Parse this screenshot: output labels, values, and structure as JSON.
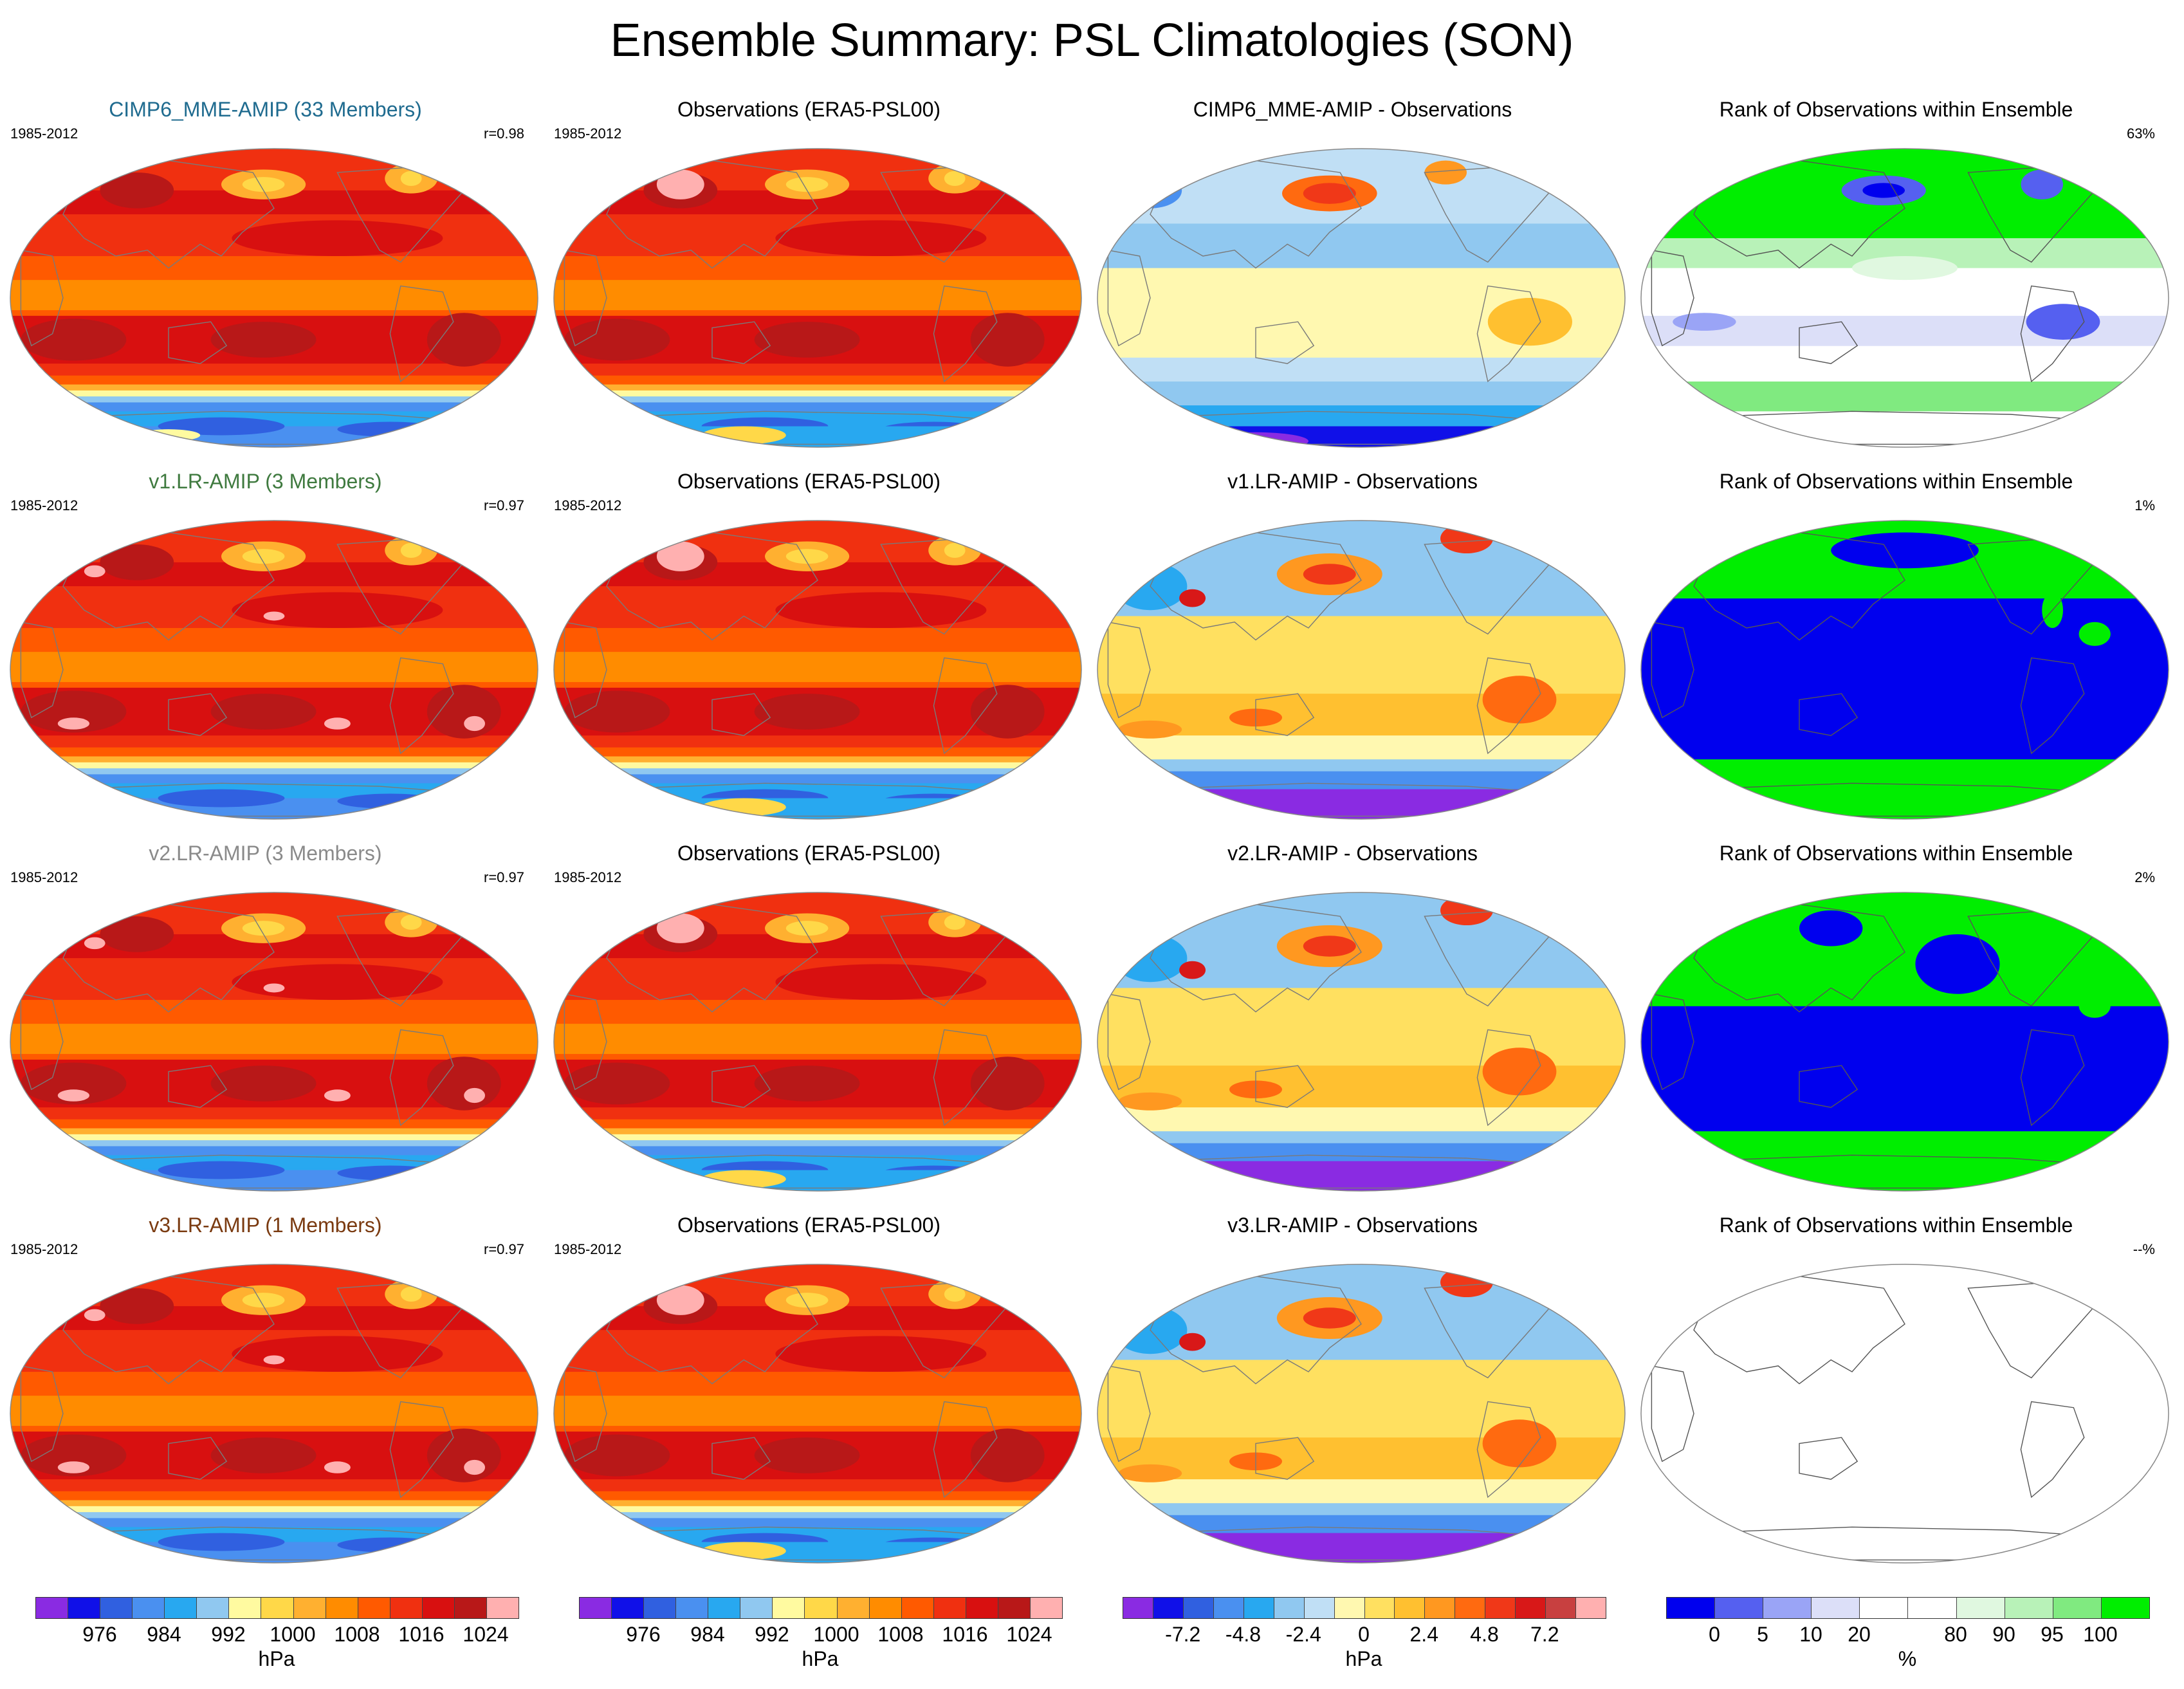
{
  "title": "Ensemble Summary: PSL Climatologies (SON)",
  "period": "1985-2012",
  "rows": [
    {
      "model_title": "CIMP6_MME-AMIP (33 Members)",
      "model_title_color": "#1f6b8f",
      "corr": "r=0.98",
      "obs_title": "Observations (ERA5-PSL00)",
      "diff_title": "CIMP6_MME-AMIP - Observations",
      "rank_title": "Rank of Observations within Ensemble",
      "rank_pct": "63%",
      "rank_style": "mixed"
    },
    {
      "model_title": "v1.LR-AMIP (3 Members)",
      "model_title_color": "#3f7a3f",
      "corr": "r=0.97",
      "obs_title": "Observations (ERA5-PSL00)",
      "diff_title": "v1.LR-AMIP - Observations",
      "rank_title": "Rank of Observations within Ensemble",
      "rank_pct": "1%",
      "rank_style": "binary"
    },
    {
      "model_title": "v2.LR-AMIP (3 Members)",
      "model_title_color": "#8a8a8a",
      "corr": "r=0.97",
      "obs_title": "Observations (ERA5-PSL00)",
      "diff_title": "v2.LR-AMIP - Observations",
      "rank_title": "Rank of Observations within Ensemble",
      "rank_pct": "2%",
      "rank_style": "binary"
    },
    {
      "model_title": "v3.LR-AMIP (1 Members)",
      "model_title_color": "#7a3a10",
      "corr": "r=0.97",
      "obs_title": "Observations (ERA5-PSL00)",
      "diff_title": "v3.LR-AMIP - Observations",
      "rank_title": "Rank of Observations within Ensemble",
      "rank_pct": "--%",
      "rank_style": "empty"
    }
  ],
  "colorbars": {
    "psl": {
      "colors": [
        "#8a2be2",
        "#1010e8",
        "#3060e0",
        "#4a90f0",
        "#28a8f0",
        "#90c8f0",
        "#fffaa0",
        "#ffd848",
        "#ffb030",
        "#ff8c00",
        "#ff5a00",
        "#f03010",
        "#d81010",
        "#b81818",
        "#ffb0b0"
      ],
      "ticks": [
        "976",
        "984",
        "992",
        "1000",
        "1008",
        "1016",
        "1024"
      ],
      "unit": "hPa"
    },
    "diff": {
      "colors": [
        "#8a2be2",
        "#1010e8",
        "#3060e0",
        "#4a90f0",
        "#28a8f0",
        "#90c8f0",
        "#c0dff5",
        "#fff8b0",
        "#ffe060",
        "#ffc030",
        "#ff9820",
        "#ff6a10",
        "#f03818",
        "#d81818",
        "#c84040",
        "#ffb0b0"
      ],
      "ticks": [
        "-7.2",
        "-4.8",
        "-2.4",
        "0",
        "2.4",
        "4.8",
        "7.2"
      ],
      "unit": "hPa"
    },
    "rank": {
      "colors": [
        "#0000ee",
        "#5560f0",
        "#9aa4f6",
        "#dcdff8",
        "#ffffff",
        "#ffffff",
        "#e0f8e0",
        "#b8f2b8",
        "#80ea80",
        "#00ee00"
      ],
      "ticks": [
        "0",
        "5",
        "10",
        "20",
        "80",
        "90",
        "95",
        "100"
      ],
      "unit": "%"
    }
  }
}
